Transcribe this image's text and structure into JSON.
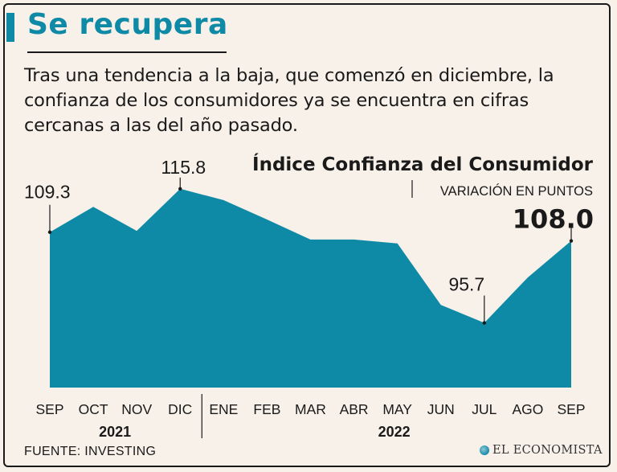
{
  "title": "Se recupera",
  "subtitle": "Tras una tendencia a la baja, que comenzó en diciembre, la confianza de los consumidores ya se encuentra en cifras cercanas a las del año pasado.",
  "source": "FUENTE: INVESTING",
  "brand": "EL ECONOMISTA",
  "brand_icon": "globe-logo-icon",
  "chart_data": {
    "type": "area",
    "title": "Índice Confianza del Consumidor",
    "subtitle": "VARIACIÓN EN PUNTOS",
    "categories": [
      "SEP",
      "OCT",
      "NOV",
      "DIC",
      "ENE",
      "FEB",
      "MAR",
      "ABR",
      "MAY",
      "JUN",
      "JUL",
      "AGO",
      "SEP"
    ],
    "values": [
      109.3,
      113.1,
      109.5,
      115.8,
      114.1,
      111.2,
      108.2,
      108.2,
      107.6,
      98.4,
      95.7,
      102.5,
      108.0
    ],
    "year_groups": [
      {
        "label": "2021",
        "start": 0,
        "end": 3
      },
      {
        "label": "2022",
        "start": 4,
        "end": 12
      }
    ],
    "annotations": [
      {
        "index": 0,
        "text": "109.3",
        "bold": false
      },
      {
        "index": 3,
        "text": "115.8",
        "bold": false
      },
      {
        "index": 10,
        "text": "95.7",
        "bold": false
      },
      {
        "index": 12,
        "text": "108.0",
        "bold": true
      }
    ],
    "ylim": [
      86,
      120
    ],
    "color": "#0f8aa6",
    "grid": false
  }
}
